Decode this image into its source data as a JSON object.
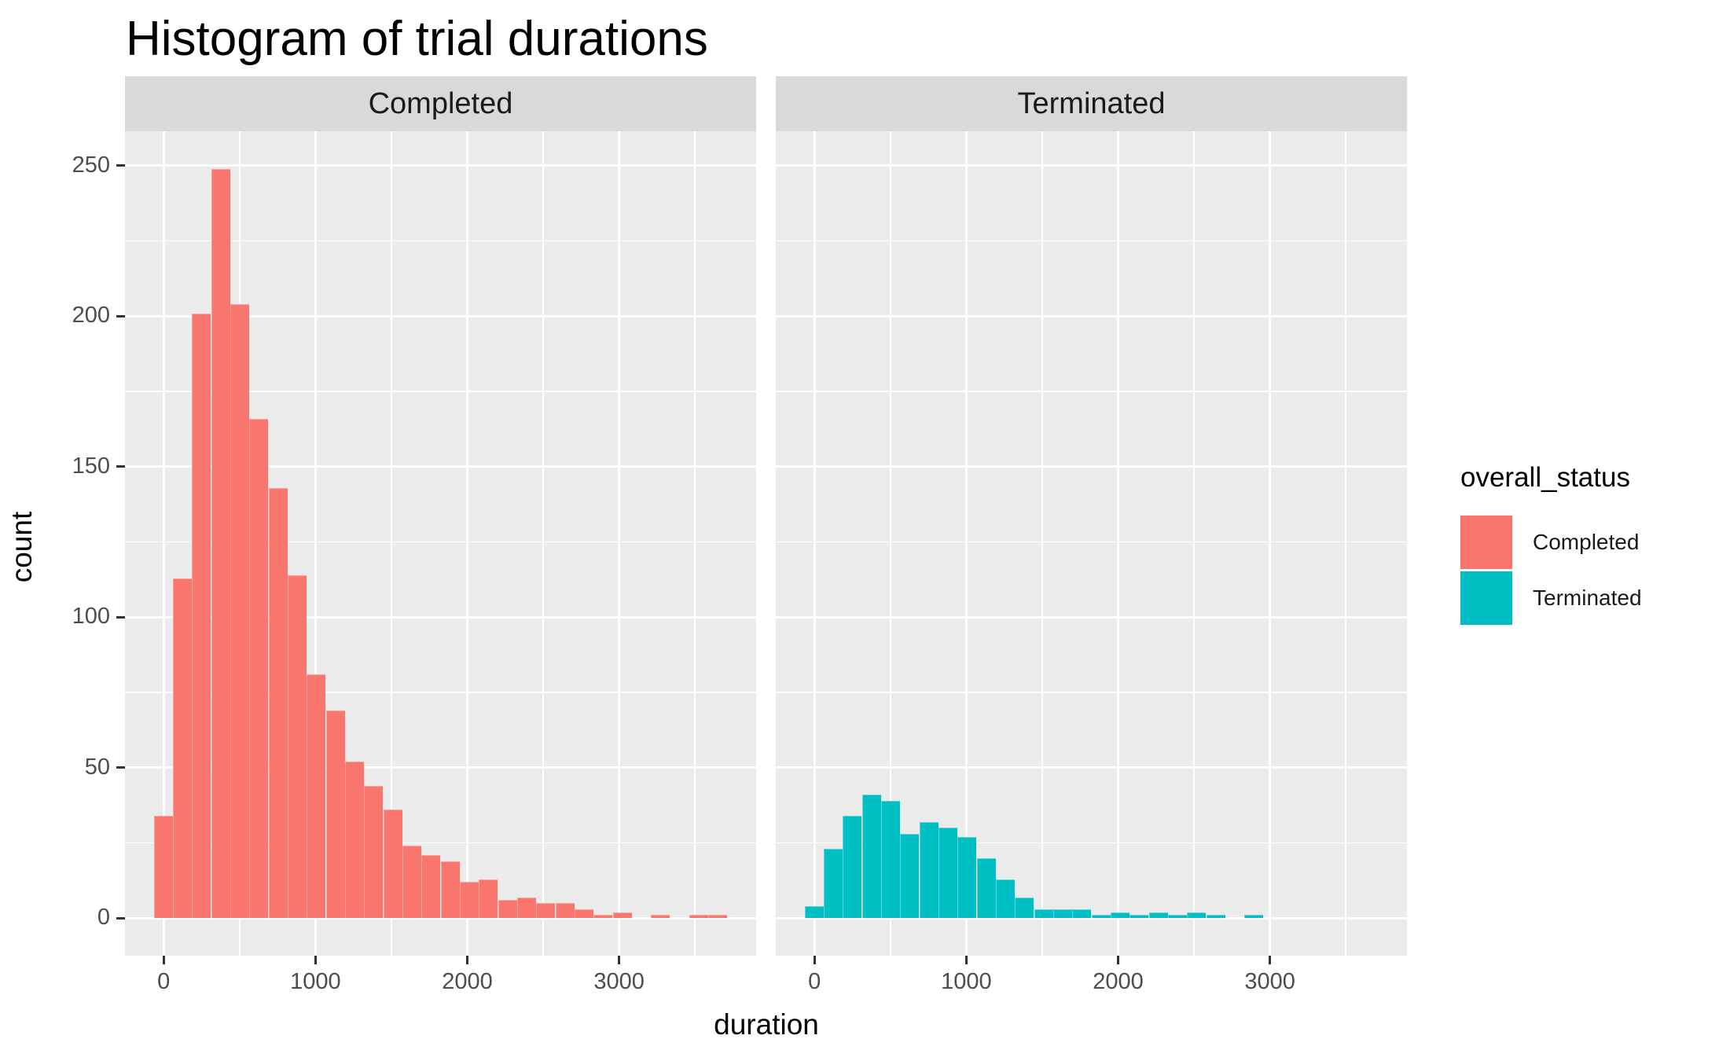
{
  "title": "Histogram of trial durations",
  "axes": {
    "x_title": "duration",
    "y_title": "count"
  },
  "facets": [
    {
      "label": "Completed"
    },
    {
      "label": "Terminated"
    }
  ],
  "legend": {
    "title": "overall_status",
    "items": [
      {
        "label": "Completed",
        "color": "#F8766D"
      },
      {
        "label": "Terminated",
        "color": "#00BFC4"
      }
    ]
  },
  "colors": {
    "panel_background": "#EBEBEB",
    "strip_background": "#D9D9D9",
    "gridline": "#FFFFFF",
    "tick_mark": "#333333",
    "tick_text": "#4D4D4D",
    "completed_fill": "#F8766D",
    "terminated_fill": "#00BFC4"
  },
  "chart_data": {
    "type": "bar",
    "subtype": "faceted-histogram",
    "title": "Histogram of trial durations",
    "xlabel": "duration",
    "ylabel": "count",
    "bin_start": -66,
    "bin_width": 126,
    "x_domain": [
      -255,
      3903
    ],
    "y_domain": [
      -12.45,
      261.45
    ],
    "x_ticks": [
      0,
      1000,
      2000,
      3000
    ],
    "x_minor_ticks": [
      500,
      1500,
      2500,
      3500
    ],
    "y_ticks": [
      0,
      50,
      100,
      150,
      200,
      250
    ],
    "y_minor_ticks": [
      25,
      75,
      125,
      175,
      225
    ],
    "grid": true,
    "legend_position": "right",
    "series": [
      {
        "name": "Completed",
        "facet": "Completed",
        "color": "#F8766D",
        "counts": [
          34,
          113,
          201,
          249,
          204,
          166,
          143,
          114,
          81,
          69,
          52,
          44,
          36,
          24,
          21,
          19,
          12,
          13,
          6,
          7,
          5,
          5,
          3,
          1,
          2,
          0,
          1,
          0,
          1,
          1
        ]
      },
      {
        "name": "Terminated",
        "facet": "Terminated",
        "color": "#00BFC4",
        "counts": [
          4,
          23,
          34,
          41,
          39,
          28,
          32,
          30,
          27,
          20,
          13,
          7,
          3,
          3,
          3,
          1,
          2,
          1,
          2,
          1,
          2,
          1,
          0,
          1
        ]
      }
    ]
  }
}
